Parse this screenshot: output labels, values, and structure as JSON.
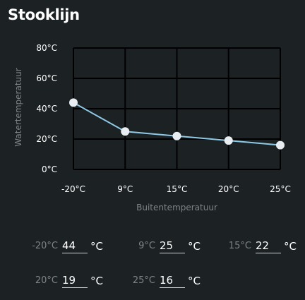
{
  "page": {
    "title": "Stooklijn"
  },
  "chart_data": {
    "type": "line",
    "xlabel": "Buitentemperatuur",
    "ylabel": "Watertemperatuur",
    "x_tick_labels": [
      "-20°C",
      "9°C",
      "15°C",
      "20°C",
      "25°C"
    ],
    "y_tick_labels": [
      "0°C",
      "20°C",
      "40°C",
      "60°C",
      "80°C"
    ],
    "ylim": [
      0,
      80
    ],
    "grid": true,
    "series": [
      {
        "values": [
          44,
          25,
          22,
          19,
          16
        ]
      }
    ],
    "colors": {
      "line": "#8ecae6",
      "point": "#e8edf2",
      "grid": "#000000",
      "background": "#1c2124"
    }
  },
  "inputs": {
    "unit": "°C",
    "fields": [
      {
        "label": "-20°C",
        "value": "44"
      },
      {
        "label": "9°C",
        "value": "25"
      },
      {
        "label": "15°C",
        "value": "22"
      },
      {
        "label": "20°C",
        "value": "19"
      },
      {
        "label": "25°C",
        "value": "16"
      }
    ]
  }
}
